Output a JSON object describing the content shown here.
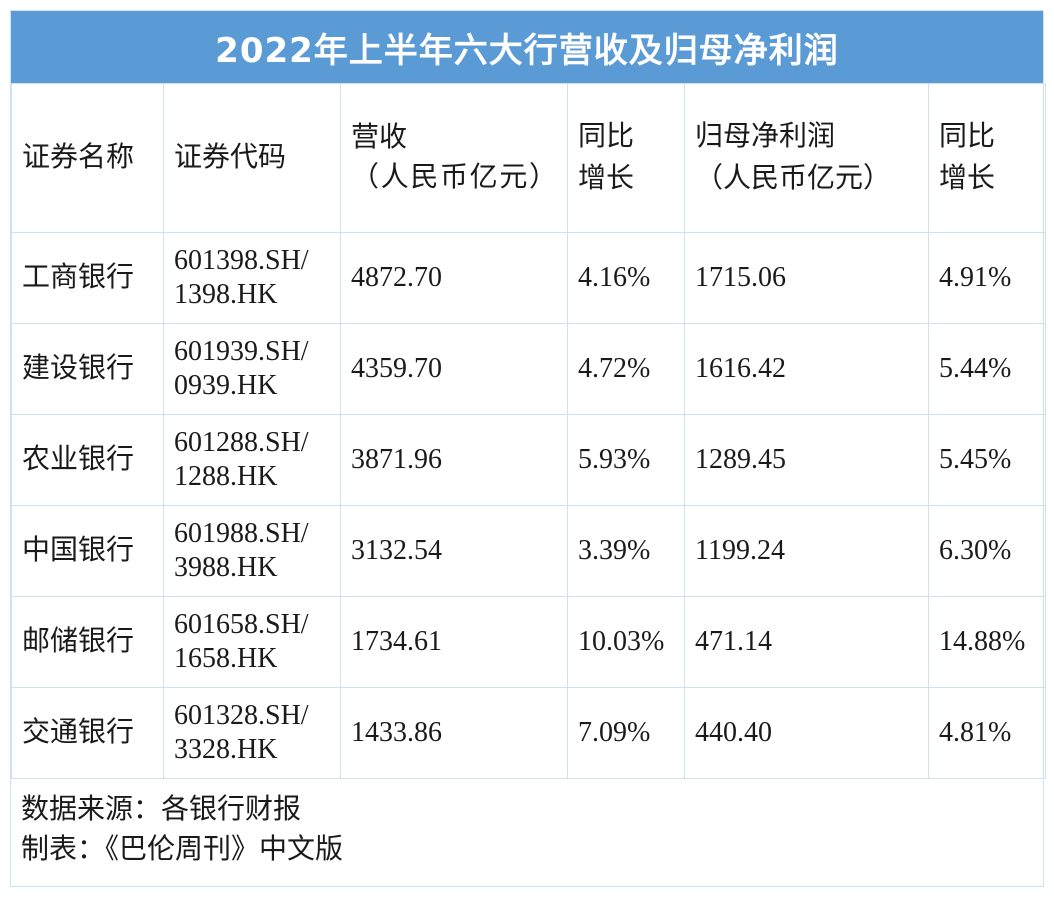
{
  "title": "2022年上半年六大行营收及归母净利润",
  "chart_data": {
    "type": "table",
    "title": "2022年上半年六大行营收及归母净利润",
    "columns": [
      {
        "line1": "证券名称",
        "line2": ""
      },
      {
        "line1": "证券代码",
        "line2": ""
      },
      {
        "line1": "营收",
        "line2": "（人民币亿元）"
      },
      {
        "line1": "同比",
        "line2": "增长"
      },
      {
        "line1": "归母净利润",
        "line2": "（人民币亿元）"
      },
      {
        "line1": "同比",
        "line2": "增长"
      }
    ],
    "rows": [
      {
        "name": "工商银行",
        "code1": "601398.SH/",
        "code2": "1398.HK",
        "revenue": "4872.70",
        "revenue_yoy": "4.16%",
        "net_profit": "1715.06",
        "profit_yoy": "4.91%"
      },
      {
        "name": "建设银行",
        "code1": "601939.SH/",
        "code2": "0939.HK",
        "revenue": "4359.70",
        "revenue_yoy": "4.72%",
        "net_profit": "1616.42",
        "profit_yoy": "5.44%"
      },
      {
        "name": "农业银行",
        "code1": "601288.SH/",
        "code2": "1288.HK",
        "revenue": "3871.96",
        "revenue_yoy": "5.93%",
        "net_profit": "1289.45",
        "profit_yoy": "5.45%"
      },
      {
        "name": "中国银行",
        "code1": "601988.SH/",
        "code2": "3988.HK",
        "revenue": "3132.54",
        "revenue_yoy": "3.39%",
        "net_profit": "1199.24",
        "profit_yoy": "6.30%"
      },
      {
        "name": "邮储银行",
        "code1": "601658.SH/",
        "code2": "1658.HK",
        "revenue": "1734.61",
        "revenue_yoy": "10.03%",
        "net_profit": "471.14",
        "profit_yoy": "14.88%"
      },
      {
        "name": "交通银行",
        "code1": "601328.SH/",
        "code2": "3328.HK",
        "revenue": "1433.86",
        "revenue_yoy": "7.09%",
        "net_profit": "440.40",
        "profit_yoy": "4.81%"
      }
    ]
  },
  "footer": {
    "source": "数据来源：各银行财报",
    "made_by": "制表：《巴伦周刊》中文版"
  },
  "colors": {
    "title_bg": "#5b9bd5",
    "title_text": "#ffffff",
    "grid": "#cfe0ef"
  }
}
